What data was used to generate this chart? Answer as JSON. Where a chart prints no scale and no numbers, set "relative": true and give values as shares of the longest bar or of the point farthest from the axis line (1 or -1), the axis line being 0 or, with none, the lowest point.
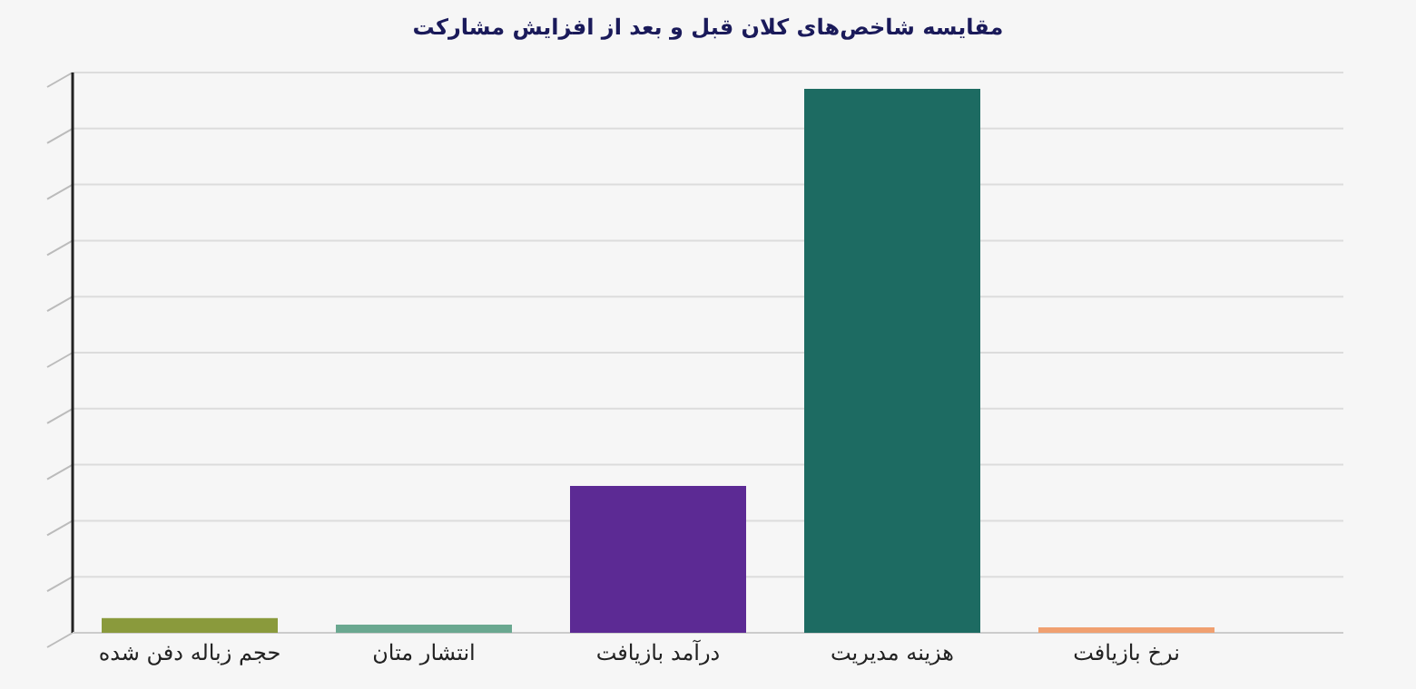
{
  "chart_data": {
    "type": "bar",
    "title": "مقایسه شاخص‌های کلان قبل و بعد از افزایش مشارکت",
    "categories": [
      "حجم زباله دفن شده",
      "انتشار متان",
      "درآمد بازیافت",
      "هزینه مدیریت",
      "نرخ بازیافت"
    ],
    "values": [
      0.027,
      0.015,
      0.27,
      1,
      0.01
    ],
    "colors": [
      "#8a9a3c",
      "#6aa890",
      "#5c2a94",
      "#1d6b62",
      "#f0a070"
    ],
    "relative": true,
    "grid": true
  }
}
